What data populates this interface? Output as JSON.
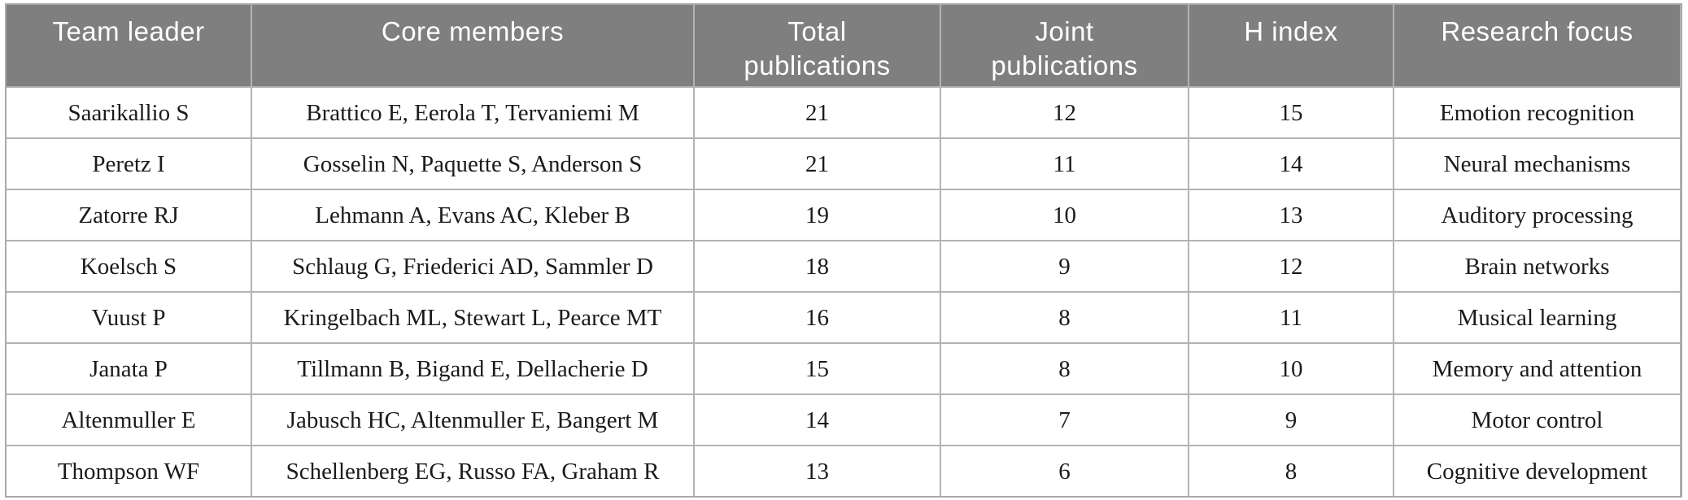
{
  "table": {
    "columns": [
      {
        "label": "Team leader"
      },
      {
        "label": "Core members"
      },
      {
        "label": "Total publications"
      },
      {
        "label": "Joint publications"
      },
      {
        "label": "H index"
      },
      {
        "label": "Research focus"
      }
    ],
    "rows": [
      [
        "Saarikallio S",
        "Brattico E, Eerola T, Tervaniemi M",
        "21",
        "12",
        "15",
        "Emotion recognition"
      ],
      [
        "Peretz I",
        "Gosselin N, Paquette S, Anderson S",
        "21",
        "11",
        "14",
        "Neural mechanisms"
      ],
      [
        "Zatorre RJ",
        "Lehmann A, Evans AC, Kleber B",
        "19",
        "10",
        "13",
        "Auditory processing"
      ],
      [
        "Koelsch S",
        "Schlaug G, Friederici AD, Sammler D",
        "18",
        "9",
        "12",
        "Brain networks"
      ],
      [
        "Vuust P",
        "Kringelbach ML, Stewart L, Pearce MT",
        "16",
        "8",
        "11",
        "Musical learning"
      ],
      [
        "Janata P",
        "Tillmann B, Bigand E, Dellacherie D",
        "15",
        "8",
        "10",
        "Memory and attention"
      ],
      [
        "Altenmuller E",
        "Jabusch HC, Altenmuller E, Bangert M",
        "14",
        "7",
        "9",
        "Motor control"
      ],
      [
        "Thompson WF",
        "Schellenberg EG, Russo FA, Graham R",
        "13",
        "6",
        "8",
        "Cognitive development"
      ]
    ]
  },
  "colors": {
    "header_bg": "#7f7f7f",
    "header_text": "#ffffff",
    "grid_line": "#b3b3b3",
    "body_text": "#1b1b1b",
    "row_bg": "#ffffff"
  },
  "chart_data": {
    "type": "table",
    "title": "",
    "columns": [
      "Team leader",
      "Core members",
      "Total publications",
      "Joint publications",
      "H index",
      "Research focus"
    ],
    "rows": [
      [
        "Saarikallio S",
        "Brattico E, Eerola T, Tervaniemi M",
        21,
        12,
        15,
        "Emotion recognition"
      ],
      [
        "Peretz I",
        "Gosselin N, Paquette S, Anderson S",
        21,
        11,
        14,
        "Neural mechanisms"
      ],
      [
        "Zatorre RJ",
        "Lehmann A, Evans AC, Kleber B",
        19,
        10,
        13,
        "Auditory processing"
      ],
      [
        "Koelsch S",
        "Schlaug G, Friederici AD, Sammler D",
        18,
        9,
        12,
        "Brain networks"
      ],
      [
        "Vuust P",
        "Kringelbach ML, Stewart L, Pearce MT",
        16,
        8,
        11,
        "Musical learning"
      ],
      [
        "Janata P",
        "Tillmann B, Bigand E, Dellacherie D",
        15,
        8,
        10,
        "Memory and attention"
      ],
      [
        "Altenmuller E",
        "Jabusch HC, Altenmuller E, Bangert M",
        14,
        7,
        9,
        "Motor control"
      ],
      [
        "Thompson WF",
        "Schellenberg EG, Russo FA, Graham R",
        13,
        6,
        8,
        "Cognitive development"
      ]
    ]
  }
}
